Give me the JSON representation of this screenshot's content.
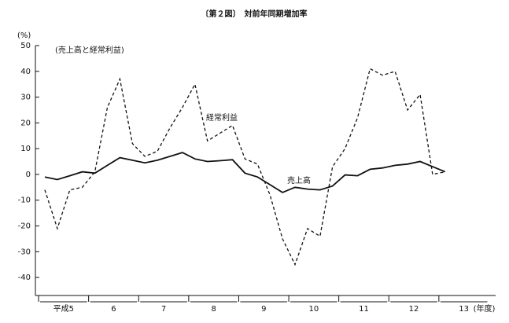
{
  "chart_data": {
    "type": "line",
    "title": "〔第２図〕　対前年同期増加率",
    "y_unit": "(%)",
    "x_unit": "(年度)",
    "annotation": "(売上高と経常利益)",
    "x_labels": [
      "平成5",
      "6",
      "7",
      "8",
      "9",
      "10",
      "11",
      "12",
      "13"
    ],
    "series": [
      {
        "name": "経常利益",
        "color": "#111111",
        "dash": true,
        "values": [
          -6,
          -21,
          -6,
          -5,
          1,
          26,
          37,
          12,
          7,
          9,
          18,
          26,
          35,
          13,
          16,
          19,
          6,
          4,
          -8,
          -25,
          -35,
          -21,
          -24,
          3,
          10,
          22,
          41,
          38.5,
          40,
          25,
          31,
          0,
          1
        ]
      },
      {
        "name": "売上高",
        "color": "#111111",
        "dash": false,
        "values": [
          -1,
          -2,
          -0.5,
          1,
          0.5,
          3.5,
          6.5,
          5.5,
          4.5,
          5.5,
          7,
          8.5,
          6,
          5,
          5.3,
          5.7,
          0.5,
          -1,
          -4,
          -7,
          -5,
          -5.7,
          -6,
          -4.5,
          -0.2,
          -0.5,
          2,
          2.5,
          3.5,
          4,
          5,
          3,
          1
        ]
      }
    ],
    "ylim": [
      -47,
      50
    ],
    "yticks": [
      -40,
      -30,
      -20,
      -10,
      0,
      10,
      20,
      30,
      40,
      50
    ],
    "grid": false
  }
}
